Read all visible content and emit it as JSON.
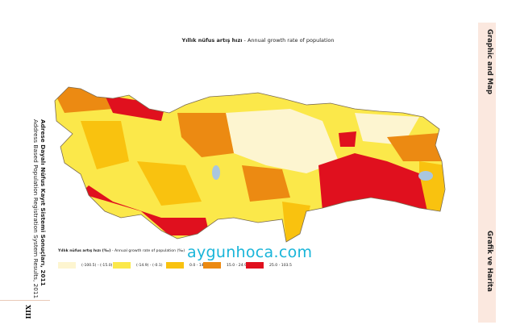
{
  "title": {
    "bold": "Yıllık nüfus artış hızı",
    "rest": " - Annual growth rate of population"
  },
  "side_left": {
    "line1": "Adrese Dayalı Nüfus Kayıt Sistemi Sonuçları, 2011",
    "line2": "Address Based Population Registration System Results, 2011"
  },
  "side_right": {
    "top": "Graphic and Map",
    "bottom": "Grafik ve Harita"
  },
  "page_number": "XIII",
  "watermark": "aygunhoca.com",
  "legend": {
    "title_bold": "Yıllık nüfus artış hızı (‰)",
    "title_rest": " - Annual growth rate of population (‰)",
    "items": [
      {
        "label": "(-100.5) - (-15.0)",
        "color": "#fdf5d0"
      },
      {
        "label": "(-14.9) - (-0.1)",
        "color": "#fbe84a"
      },
      {
        "label": "0.0 - 14.9",
        "color": "#f9c20f"
      },
      {
        "label": "15.0 - 24.9",
        "color": "#ec8a12"
      },
      {
        "label": "25.0 - 103.5",
        "color": "#e0101e"
      }
    ]
  },
  "map": {
    "lake_color": "#a9c6de",
    "border_color": "#7a6a50"
  }
}
